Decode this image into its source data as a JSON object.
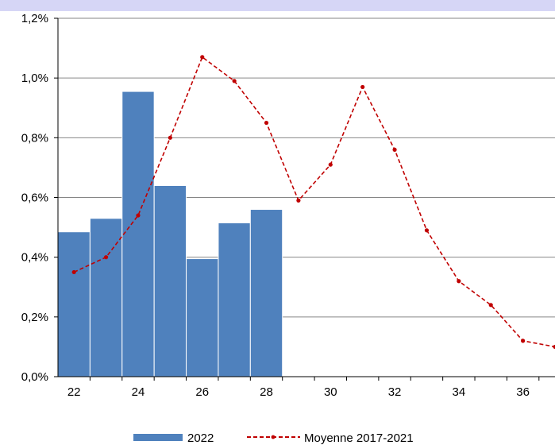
{
  "chart_data": {
    "type": "bar",
    "x": [
      22,
      23,
      24,
      25,
      26,
      27,
      28,
      29,
      30,
      31,
      32,
      33,
      34,
      35,
      36,
      37
    ],
    "xticks": [
      "22",
      "24",
      "26",
      "28",
      "30",
      "32",
      "34",
      "36"
    ],
    "xtick_values": [
      22,
      24,
      26,
      28,
      30,
      32,
      34,
      36
    ],
    "yticks": [
      "0,0%",
      "0,2%",
      "0,4%",
      "0,6%",
      "0,8%",
      "1,0%",
      "1,2%"
    ],
    "ytick_values": [
      0,
      0.2,
      0.4,
      0.6,
      0.8,
      1.0,
      1.2
    ],
    "ylim": [
      0,
      1.2
    ],
    "xlim": [
      21.5,
      37.0
    ],
    "grid": "horizontal",
    "legend_position": "bottom",
    "series": [
      {
        "name": "2022",
        "kind": "bar",
        "color": "#4f81bd",
        "x": [
          22,
          23,
          24,
          25,
          26,
          27,
          28
        ],
        "values": [
          0.485,
          0.53,
          0.955,
          0.64,
          0.395,
          0.515,
          0.56
        ]
      },
      {
        "name": "Moyenne 2017-2021",
        "kind": "line",
        "style": "dashed",
        "color": "#c00000",
        "x": [
          22,
          23,
          24,
          25,
          26,
          27,
          28,
          29,
          30,
          31,
          32,
          33,
          34,
          35,
          36,
          37
        ],
        "values": [
          0.35,
          0.4,
          0.54,
          0.8,
          1.07,
          0.99,
          0.85,
          0.59,
          0.71,
          0.97,
          0.76,
          0.49,
          0.32,
          0.24,
          0.12,
          0.1
        ]
      }
    ]
  }
}
